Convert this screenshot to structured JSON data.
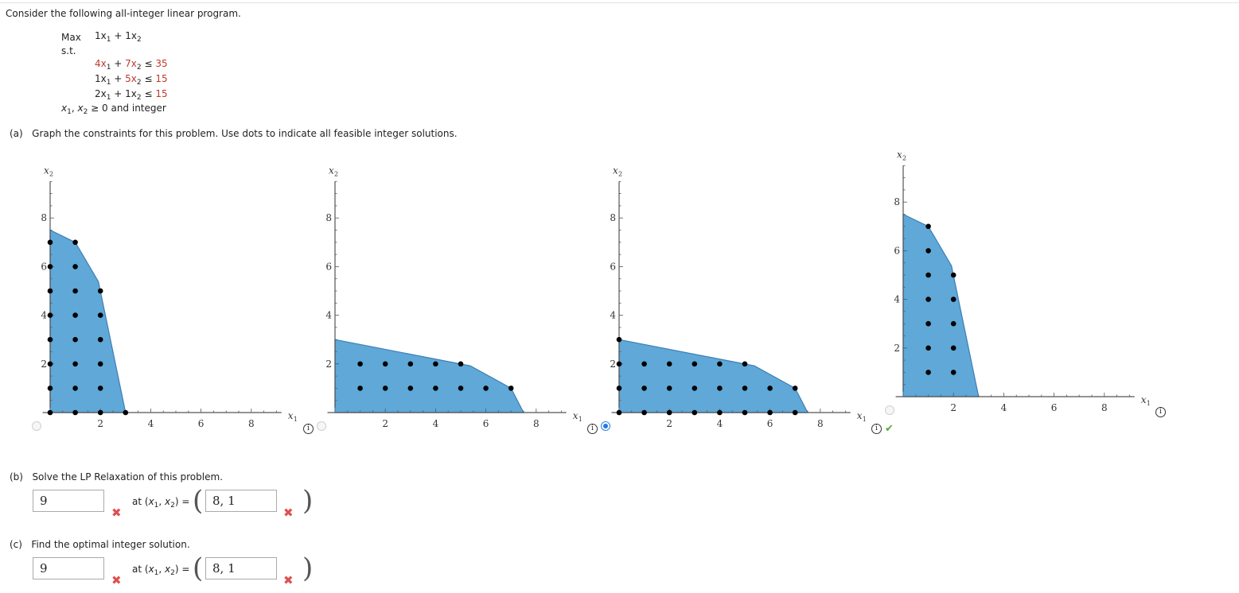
{
  "intro": "Consider the following all-integer linear program.",
  "lp": {
    "max_label": "Max",
    "objective": {
      "c1": "1x",
      "s1": "1",
      "plus": "+",
      "c2": "1x",
      "s2": "2"
    },
    "st_label": "s.t.",
    "constraints": [
      {
        "a": "4x",
        "b": "7x",
        "rhs": "35",
        "a_red": true,
        "b_red": true
      },
      {
        "a": "1x",
        "b": "5x",
        "rhs": "15",
        "a_red": false,
        "b_red": true
      },
      {
        "a": "2x",
        "b": "1x",
        "rhs": "15",
        "a_red": false,
        "b_red": false
      }
    ],
    "leq": "≤",
    "nonneg": "≥ 0 and integer",
    "var1": "x",
    "var2": "x"
  },
  "part_a": {
    "label": "(a)",
    "text": "Graph the constraints for this problem. Use dots to indicate all feasible integer solutions."
  },
  "chart_data": [
    {
      "type": "scatter",
      "title": "Option 1",
      "xlabel": "x1",
      "ylabel": "x2",
      "xlim": [
        0,
        9
      ],
      "ylim": [
        0,
        9.5
      ],
      "xticks": [
        2,
        4,
        6,
        8
      ],
      "yticks": [
        2,
        4,
        6,
        8
      ],
      "region": [
        [
          0,
          0
        ],
        [
          0,
          7.5
        ],
        [
          1,
          7
        ],
        [
          1.92,
          5.38
        ],
        [
          3,
          0
        ]
      ],
      "points": [
        [
          0,
          0
        ],
        [
          1,
          0
        ],
        [
          2,
          0
        ],
        [
          3,
          0
        ],
        [
          0,
          1
        ],
        [
          1,
          1
        ],
        [
          2,
          1
        ],
        [
          0,
          2
        ],
        [
          1,
          2
        ],
        [
          2,
          2
        ],
        [
          0,
          3
        ],
        [
          1,
          3
        ],
        [
          2,
          3
        ],
        [
          0,
          4
        ],
        [
          1,
          4
        ],
        [
          2,
          4
        ],
        [
          0,
          5
        ],
        [
          1,
          5
        ],
        [
          2,
          5
        ],
        [
          0,
          6
        ],
        [
          1,
          6
        ],
        [
          0,
          7
        ],
        [
          1,
          7
        ]
      ],
      "selected": false
    },
    {
      "type": "scatter",
      "title": "Option 2",
      "xlabel": "x1",
      "ylabel": "x2",
      "xlim": [
        0,
        9
      ],
      "ylim": [
        0,
        9.5
      ],
      "xticks": [
        2,
        4,
        6,
        8
      ],
      "yticks": [
        2,
        4,
        6,
        8
      ],
      "region": [
        [
          0,
          0
        ],
        [
          0,
          3
        ],
        [
          5.38,
          1.92
        ],
        [
          7,
          1
        ],
        [
          7.5,
          0
        ]
      ],
      "points": [
        [
          1,
          1
        ],
        [
          2,
          1
        ],
        [
          3,
          1
        ],
        [
          4,
          1
        ],
        [
          5,
          1
        ],
        [
          6,
          1
        ],
        [
          7,
          1
        ],
        [
          1,
          2
        ],
        [
          2,
          2
        ],
        [
          3,
          2
        ],
        [
          4,
          2
        ],
        [
          5,
          2
        ]
      ],
      "selected": false
    },
    {
      "type": "scatter",
      "title": "Option 3",
      "xlabel": "x1",
      "ylabel": "x2",
      "xlim": [
        0,
        9
      ],
      "ylim": [
        0,
        9.5
      ],
      "xticks": [
        2,
        4,
        6,
        8
      ],
      "yticks": [
        2,
        4,
        6,
        8
      ],
      "region": [
        [
          0,
          0
        ],
        [
          0,
          3
        ],
        [
          5.38,
          1.92
        ],
        [
          7,
          1
        ],
        [
          7.5,
          0
        ]
      ],
      "points": [
        [
          0,
          0
        ],
        [
          1,
          0
        ],
        [
          2,
          0
        ],
        [
          3,
          0
        ],
        [
          4,
          0
        ],
        [
          5,
          0
        ],
        [
          6,
          0
        ],
        [
          7,
          0
        ],
        [
          0,
          1
        ],
        [
          1,
          1
        ],
        [
          2,
          1
        ],
        [
          3,
          1
        ],
        [
          4,
          1
        ],
        [
          5,
          1
        ],
        [
          6,
          1
        ],
        [
          7,
          1
        ],
        [
          0,
          2
        ],
        [
          1,
          2
        ],
        [
          2,
          2
        ],
        [
          3,
          2
        ],
        [
          4,
          2
        ],
        [
          5,
          2
        ],
        [
          0,
          3
        ]
      ],
      "selected": true,
      "correct": true
    },
    {
      "type": "scatter",
      "title": "Option 4",
      "xlabel": "x1",
      "ylabel": "x2",
      "xlim": [
        0,
        9
      ],
      "ylim": [
        0,
        9.5
      ],
      "xticks": [
        2,
        4,
        6,
        8
      ],
      "yticks": [
        2,
        4,
        6,
        8
      ],
      "region": [
        [
          0,
          0
        ],
        [
          0,
          7.5
        ],
        [
          1,
          7
        ],
        [
          1.92,
          5.38
        ],
        [
          3,
          0
        ]
      ],
      "points": [
        [
          1,
          1
        ],
        [
          2,
          1
        ],
        [
          1,
          2
        ],
        [
          2,
          2
        ],
        [
          1,
          3
        ],
        [
          2,
          3
        ],
        [
          1,
          4
        ],
        [
          2,
          4
        ],
        [
          1,
          5
        ],
        [
          2,
          5
        ],
        [
          1,
          6
        ],
        [
          1,
          7
        ]
      ],
      "selected": false
    }
  ],
  "chart_colors": {
    "fill": "#5fa8d8",
    "edge": "#3d7fb5",
    "axis": "#555555",
    "dot": "#000000"
  },
  "part_b": {
    "label": "(b)",
    "text": "Solve the LP Relaxation of this problem.",
    "value": "9",
    "at_label": "at (x",
    "point": "8, 1",
    "value_status": "incorrect",
    "point_status": "incorrect"
  },
  "part_c": {
    "label": "(c)",
    "text": "Find the optimal integer solution.",
    "value": "9",
    "at_label": "at (x",
    "point": "8, 1",
    "value_status": "incorrect",
    "point_status": "incorrect"
  },
  "icons": {
    "info": "i",
    "check": "✔",
    "cross": "✖"
  }
}
